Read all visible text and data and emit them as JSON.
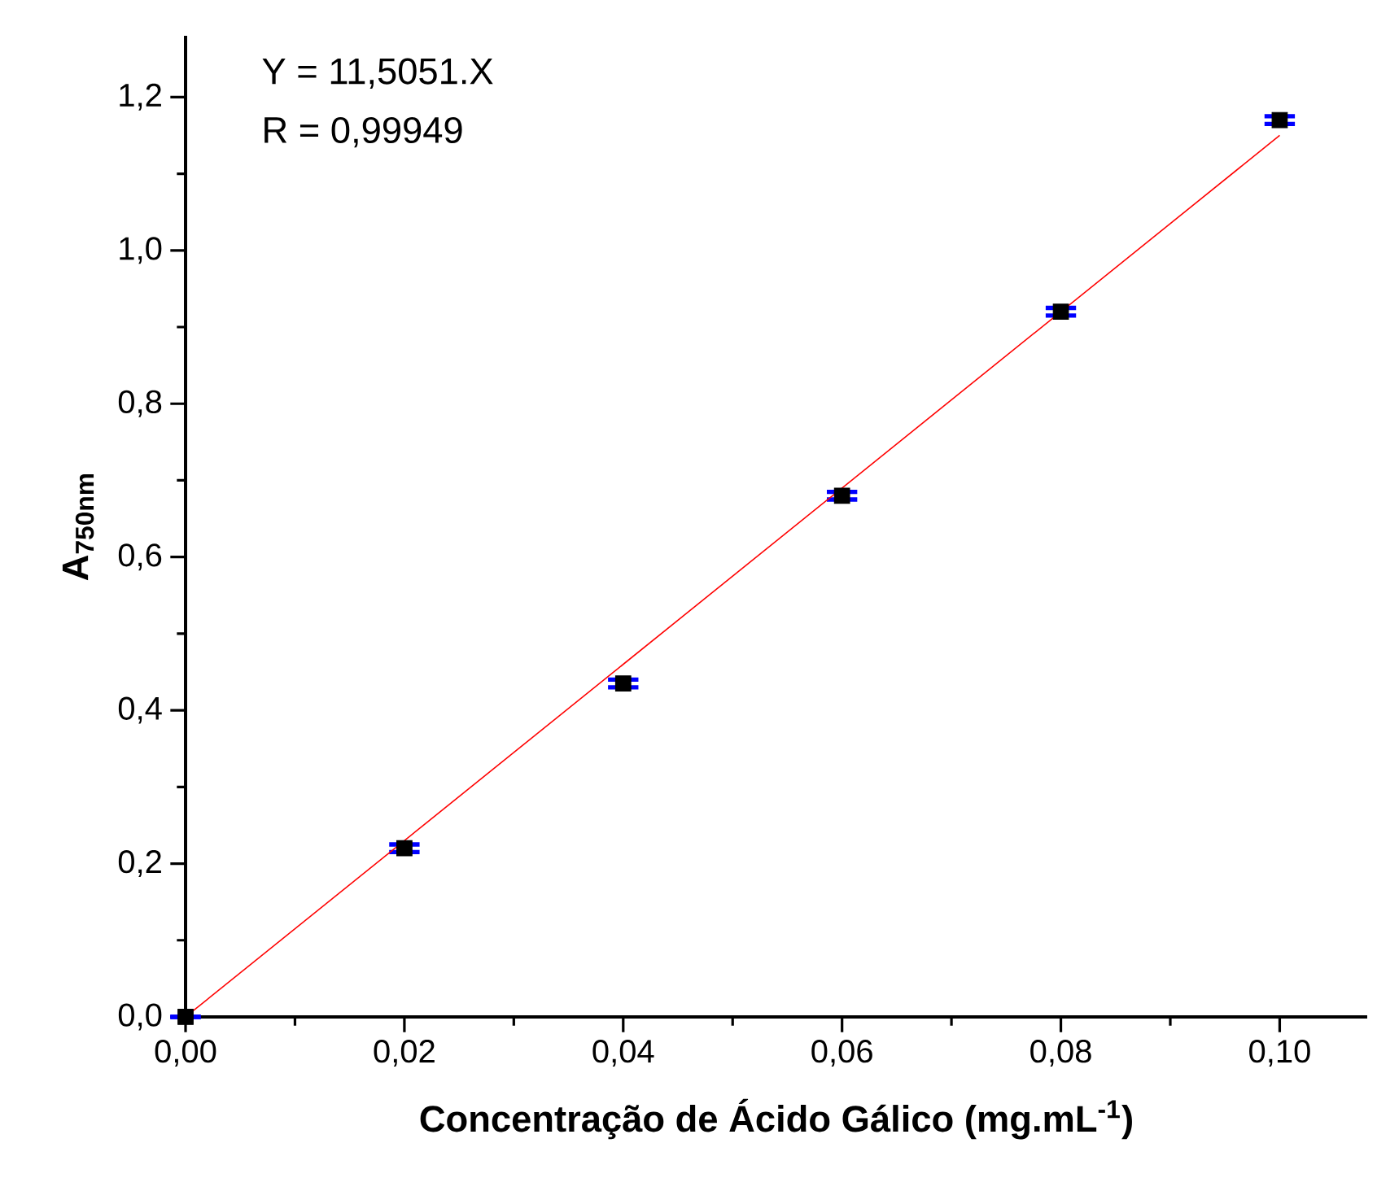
{
  "chart_data": {
    "type": "scatter",
    "xlabel": "Concentração de Ácido Gálico (mg.mL$^{-1}$)",
    "ylabel": "A$_{750nm}$",
    "annotations": [
      "Y = 11,5051.X",
      "R = 0,99949"
    ],
    "xlim": [
      0,
      0.108
    ],
    "ylim": [
      0,
      1.28
    ],
    "xticks": [
      {
        "value": 0,
        "label": "0,00"
      },
      {
        "value": 0.01,
        "label": null
      },
      {
        "value": 0.02,
        "label": "0,02"
      },
      {
        "value": 0.03,
        "label": null
      },
      {
        "value": 0.04,
        "label": "0,04"
      },
      {
        "value": 0.05,
        "label": null
      },
      {
        "value": 0.06,
        "label": "0,06"
      },
      {
        "value": 0.07,
        "label": null
      },
      {
        "value": 0.08,
        "label": "0,08"
      },
      {
        "value": 0.09,
        "label": null
      },
      {
        "value": 0.1,
        "label": "0,10"
      }
    ],
    "yticks": [
      {
        "value": 0,
        "label": "0,0"
      },
      {
        "value": 0.1,
        "label": null
      },
      {
        "value": 0.2,
        "label": "0,2"
      },
      {
        "value": 0.3,
        "label": null
      },
      {
        "value": 0.4,
        "label": "0,4"
      },
      {
        "value": 0.5,
        "label": null
      },
      {
        "value": 0.6,
        "label": "0,6"
      },
      {
        "value": 0.7,
        "label": null
      },
      {
        "value": 0.8,
        "label": "0,8"
      },
      {
        "value": 0.9,
        "label": null
      },
      {
        "value": 1.0,
        "label": "1,0"
      },
      {
        "value": 1.1,
        "label": null
      },
      {
        "value": 1.2,
        "label": "1,2"
      }
    ],
    "grid": false,
    "series": [
      {
        "color": "#000000",
        "marker": "square",
        "x": [
          0,
          0.02,
          0.04,
          0.06,
          0.08,
          0.1
        ],
        "values": [
          0,
          0.22,
          0.435,
          0.68,
          0.92,
          1.17
        ],
        "errors": [
          null,
          0.005,
          0.005,
          0.005,
          0.005,
          0.005
        ]
      },
      {
        "type": "line",
        "color": "#ff0000",
        "line_style": "solid",
        "x": [
          0,
          0.1
        ],
        "values": [
          0,
          1.15
        ]
      }
    ]
  }
}
